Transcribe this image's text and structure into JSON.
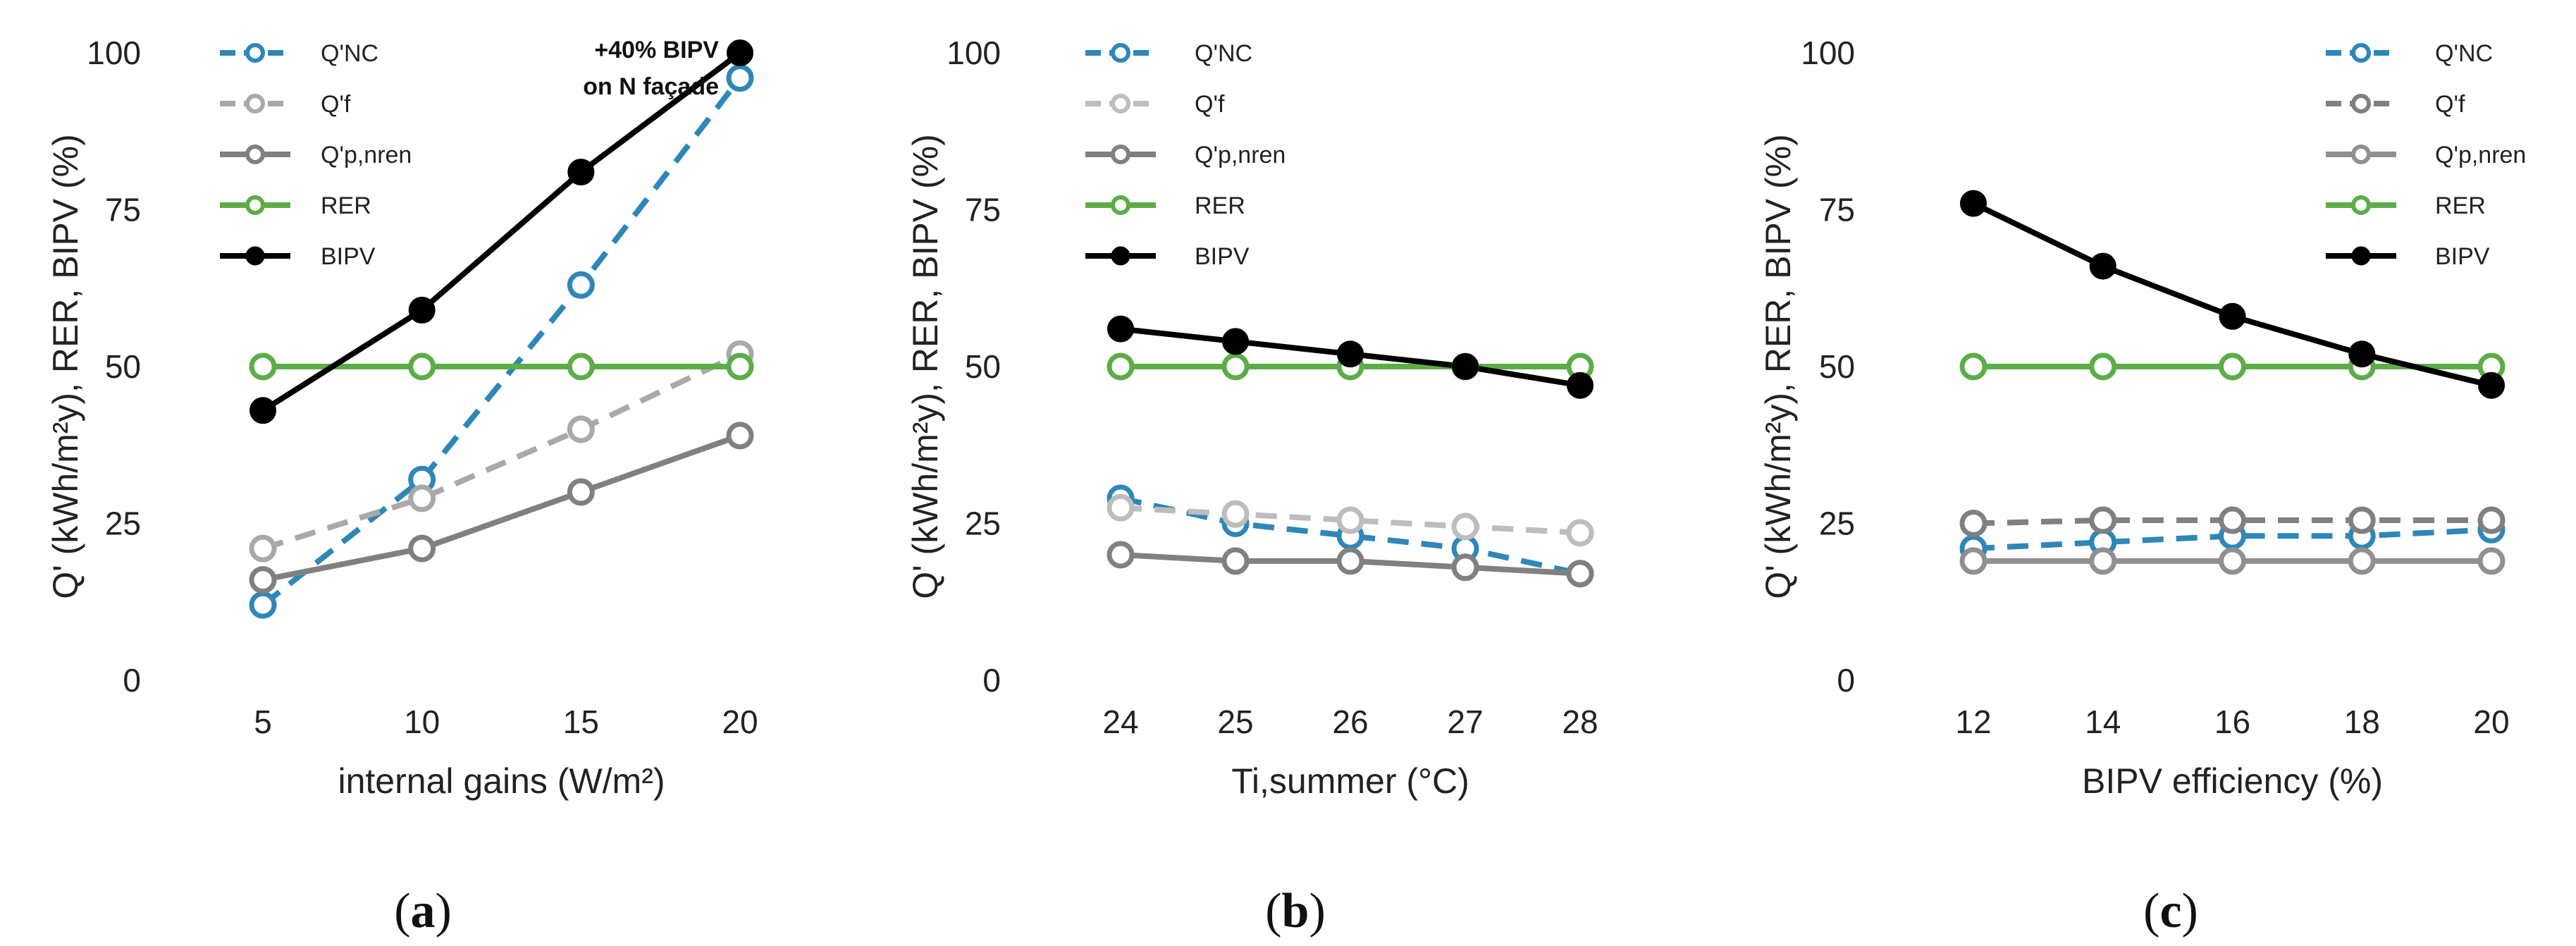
{
  "chart_data": [
    {
      "type": "line",
      "panel_label": "a",
      "x": [
        5,
        10,
        15,
        20
      ],
      "xlabel": "internal gains (W/m²)",
      "ylabel": "Q' (kWh/m²y),  RER, BIPV (%)",
      "ylim": [
        0,
        100
      ],
      "yticks": [
        0,
        25,
        50,
        75,
        100
      ],
      "legend_position": "top-left",
      "annotation": {
        "lines": [
          "+40% BIPV",
          "on N façade"
        ],
        "x": 20,
        "y": 100
      },
      "series": [
        {
          "name": "Q'NC",
          "color": "#2e87b8",
          "style": "dashed",
          "marker": "open-circle",
          "values": [
            12,
            32,
            63,
            96
          ]
        },
        {
          "name": "Q'f",
          "color": "#a9a9a9",
          "style": "dashed",
          "marker": "open-circle",
          "values": [
            21,
            29,
            40,
            52
          ]
        },
        {
          "name": "Q'p,nren",
          "color": "#808080",
          "style": "solid",
          "marker": "open-circle",
          "values": [
            16,
            21,
            30,
            39
          ]
        },
        {
          "name": "RER",
          "color": "#5cad47",
          "style": "solid",
          "marker": "open-circle",
          "values": [
            50,
            50,
            50,
            50
          ]
        },
        {
          "name": "BIPV",
          "color": "#000000",
          "style": "solid",
          "marker": "filled-circle",
          "values": [
            43,
            59,
            81,
            100
          ]
        }
      ]
    },
    {
      "type": "line",
      "panel_label": "b",
      "x": [
        24,
        25,
        26,
        27,
        28
      ],
      "xlabel": "Ti,summer (°C)",
      "ylabel": "Q' (kWh/m²y),  RER, BIPV (%)",
      "ylim": [
        0,
        100
      ],
      "yticks": [
        0,
        25,
        50,
        75,
        100
      ],
      "legend_position": "top-left",
      "series": [
        {
          "name": "Q'NC",
          "color": "#2e87b8",
          "style": "dashed",
          "marker": "open-circle",
          "values": [
            29,
            25,
            23,
            21,
            17
          ]
        },
        {
          "name": "Q'f",
          "color": "#bdbdbd",
          "style": "dashed",
          "marker": "open-circle",
          "values": [
            27.5,
            26.5,
            25.5,
            24.5,
            23.5
          ]
        },
        {
          "name": "Q'p,nren",
          "color": "#808080",
          "style": "solid",
          "marker": "open-circle",
          "values": [
            20,
            19,
            19,
            18,
            17
          ]
        },
        {
          "name": "RER",
          "color": "#5cad47",
          "style": "solid",
          "marker": "open-circle",
          "values": [
            50,
            50,
            50,
            50,
            50
          ]
        },
        {
          "name": "BIPV",
          "color": "#000000",
          "style": "solid",
          "marker": "filled-circle",
          "values": [
            56,
            54,
            52,
            50,
            47
          ]
        }
      ]
    },
    {
      "type": "line",
      "panel_label": "c",
      "x": [
        12,
        14,
        16,
        18,
        20
      ],
      "xlabel": "BIPV efficiency (%)",
      "ylabel": "Q' (kWh/m²y),  RER, BIPV (%)",
      "ylim": [
        0,
        100
      ],
      "yticks": [
        0,
        25,
        50,
        75,
        100
      ],
      "legend_position": "top-right",
      "series": [
        {
          "name": "Q'NC",
          "color": "#2e87b8",
          "style": "dashed",
          "marker": "open-circle",
          "values": [
            21,
            22,
            23,
            23,
            24
          ]
        },
        {
          "name": "Q'f",
          "color": "#808080",
          "style": "dashed",
          "marker": "open-circle",
          "values": [
            25,
            25.5,
            25.5,
            25.5,
            25.5
          ]
        },
        {
          "name": "Q'p,nren",
          "color": "#909090",
          "style": "solid",
          "marker": "open-circle",
          "values": [
            19,
            19,
            19,
            19,
            19
          ]
        },
        {
          "name": "RER",
          "color": "#5cad47",
          "style": "solid",
          "marker": "open-circle",
          "values": [
            50,
            50,
            50,
            50,
            50
          ]
        },
        {
          "name": "BIPV",
          "color": "#000000",
          "style": "solid",
          "marker": "filled-circle",
          "values": [
            76,
            66,
            58,
            52,
            47
          ]
        }
      ]
    }
  ]
}
